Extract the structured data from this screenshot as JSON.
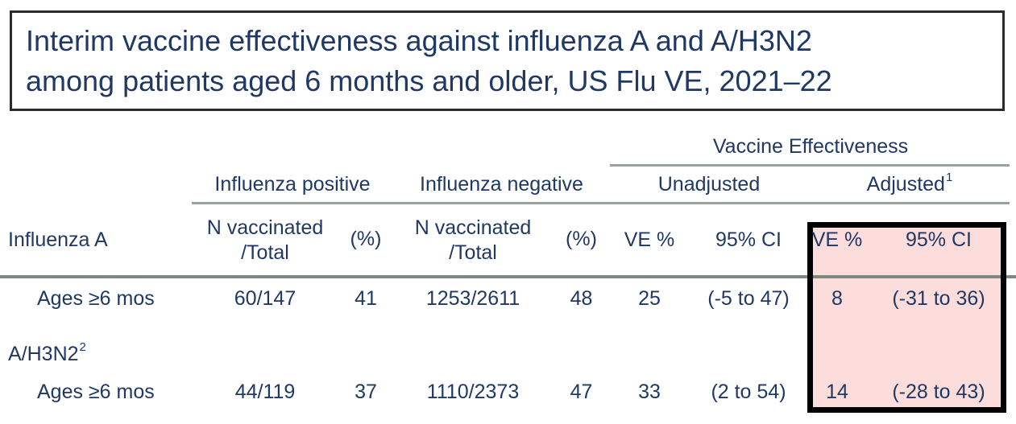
{
  "title": {
    "lines": [
      "Interim vaccine effectiveness against influenza A and A/H3N2",
      "among patients aged 6 months and older, US Flu VE, 2021–22"
    ]
  },
  "table": {
    "span_header": "Vaccine Effectiveness",
    "group_headers": [
      {
        "label": "Influenza positive"
      },
      {
        "label": "Influenza negative"
      },
      {
        "label": "Unadjusted"
      },
      {
        "label": "Adjusted",
        "superscript": "1"
      }
    ],
    "row_header_label": "Influenza A",
    "column_headers": [
      "N vaccinated /Total",
      "(%)",
      "N vaccinated /Total",
      "(%)",
      "VE %",
      "95% CI",
      "VE %",
      "95% CI"
    ],
    "sections": [
      {
        "rows": [
          {
            "label": "Ages ≥6 mos",
            "values": [
              "60/147",
              "41",
              "1253/2611",
              "48",
              "25",
              "(-5 to 47)",
              "8",
              "(-31 to 36)"
            ]
          }
        ]
      },
      {
        "label": "A/H3N2",
        "label_superscript": "2",
        "rows": [
          {
            "label": "Ages ≥6 mos",
            "values": [
              "44/119",
              "37",
              "1110/2373",
              "47",
              "33",
              "(2 to 54)",
              "14",
              "(-28 to 43)"
            ]
          }
        ]
      }
    ]
  },
  "colors": {
    "text_navy": "#1F3864",
    "rule_gray": "#99A39C",
    "header_rule_dark": "#7E8983",
    "highlight_fill": "#FCDDDB",
    "highlight_border": "#000000",
    "title_border": "#2B2B2B"
  }
}
